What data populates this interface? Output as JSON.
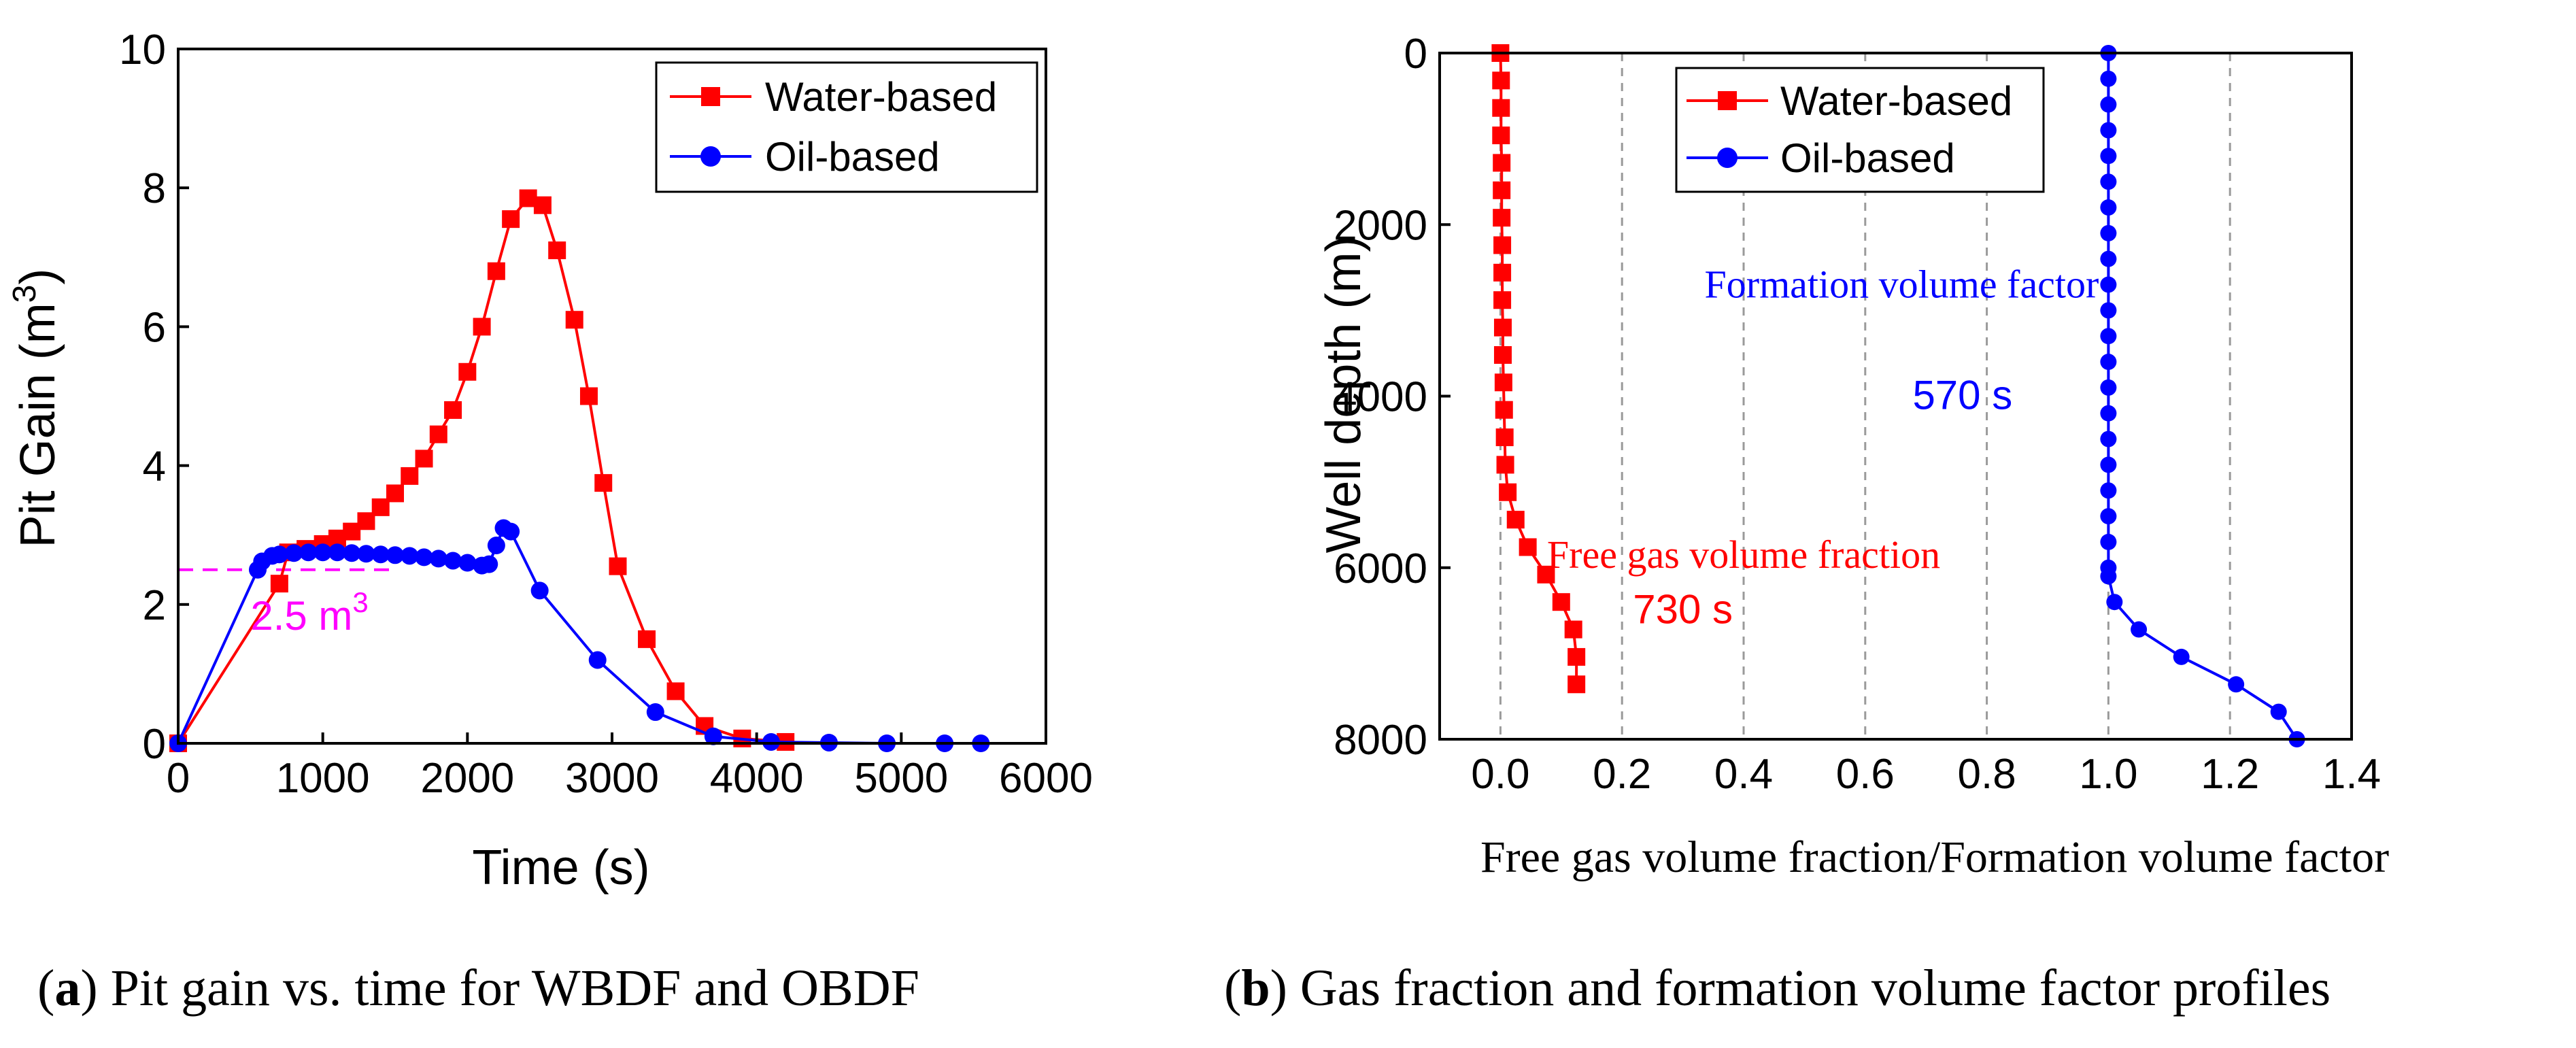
{
  "chart_data": [
    {
      "type": "line",
      "panel_caption_letter": "a",
      "caption": ") Pit gain vs. time for WBDF and OBDF",
      "xlabel": "Time (s)",
      "ylabel": "Pit Gain (m",
      "ylabel_sup": "3",
      "ylabel_end": ")",
      "xlim": [
        0,
        6000
      ],
      "ylim": [
        0,
        10
      ],
      "xticks": [
        "0",
        "1000",
        "2000",
        "3000",
        "4000",
        "5000",
        "6000"
      ],
      "yticks": [
        "0",
        "2",
        "4",
        "6",
        "8",
        "10"
      ],
      "legend": [
        "Water-based",
        "Oil-based"
      ],
      "series": [
        {
          "name": "Water-based",
          "color": "#ff0000",
          "marker": "square",
          "x": [
            0,
            700,
            760,
            880,
            1000,
            1100,
            1200,
            1300,
            1400,
            1500,
            1600,
            1700,
            1800,
            1900,
            2000,
            2100,
            2200,
            2300,
            2420,
            2520,
            2620,
            2740,
            2840,
            2940,
            3040,
            3240,
            3440,
            3640,
            3900,
            4200
          ],
          "y": [
            0,
            2.3,
            2.75,
            2.8,
            2.87,
            2.95,
            3.05,
            3.2,
            3.4,
            3.6,
            3.85,
            4.1,
            4.45,
            4.8,
            5.35,
            6.0,
            6.8,
            7.55,
            7.85,
            7.75,
            7.1,
            6.1,
            5.0,
            3.75,
            2.55,
            1.5,
            0.75,
            0.25,
            0.07,
            0.02
          ]
        },
        {
          "name": "Oil-based",
          "color": "#0000ff",
          "marker": "circle",
          "x": [
            0,
            550,
            580,
            650,
            700,
            800,
            900,
            1000,
            1100,
            1200,
            1300,
            1400,
            1500,
            1600,
            1700,
            1800,
            1900,
            2000,
            2100,
            2150,
            2200,
            2250,
            2300,
            2500,
            2900,
            3300,
            3700,
            4100,
            4500,
            4900,
            5300,
            5550
          ],
          "y": [
            0,
            2.5,
            2.62,
            2.7,
            2.72,
            2.74,
            2.75,
            2.75,
            2.75,
            2.74,
            2.73,
            2.72,
            2.71,
            2.7,
            2.68,
            2.66,
            2.63,
            2.6,
            2.56,
            2.58,
            2.85,
            3.1,
            3.05,
            2.2,
            1.2,
            0.45,
            0.1,
            0.02,
            0.01,
            0.0,
            0.0,
            0.0
          ]
        }
      ],
      "reference_line": {
        "y": 2.5,
        "x_end": 1500,
        "color": "#ff00ff",
        "label": "2.5 m",
        "label_sup": "3"
      }
    },
    {
      "type": "line",
      "panel_caption_letter": "b",
      "caption": ") Gas fraction and formation volume factor profiles",
      "xlabel": "Free gas volume fraction/Formation volume factor",
      "ylabel": "Well depth (m)",
      "xlim": [
        -0.1,
        1.4
      ],
      "ylim": [
        8000,
        0
      ],
      "xticks": [
        "0.0",
        "0.2",
        "0.4",
        "0.6",
        "0.8",
        "1.0",
        "1.2",
        "1.4"
      ],
      "yticks": [
        "0",
        "2000",
        "4000",
        "6000",
        "8000"
      ],
      "grid": "vertical dashed",
      "legend": [
        "Water-based",
        "Oil-based"
      ],
      "series": [
        {
          "name": "Water-based",
          "color": "#ff0000",
          "marker": "square",
          "x": [
            0,
            0.001,
            0.001,
            0.001,
            0.002,
            0.002,
            0.002,
            0.003,
            0.003,
            0.003,
            0.004,
            0.004,
            0.005,
            0.006,
            0.007,
            0.008,
            0.012,
            0.025,
            0.045,
            0.075,
            0.1,
            0.12,
            0.125,
            0.125
          ],
          "depth": [
            0,
            320,
            640,
            960,
            1280,
            1600,
            1920,
            2240,
            2560,
            2880,
            3200,
            3520,
            3840,
            4160,
            4480,
            4800,
            5120,
            5440,
            5760,
            6080,
            6400,
            6720,
            7040,
            7360
          ]
        },
        {
          "name": "Oil-based",
          "color": "#0000ff",
          "marker": "circle",
          "x": [
            1.0,
            1.0,
            1.0,
            1.0,
            1.0,
            1.0,
            1.0,
            1.0,
            1.0,
            1.0,
            1.0,
            1.0,
            1.0,
            1.0,
            1.0,
            1.0,
            1.0,
            1.0,
            1.0,
            1.0,
            1.0,
            1.0,
            1.01,
            1.05,
            1.12,
            1.21,
            1.28,
            1.31
          ],
          "depth": [
            0,
            300,
            600,
            900,
            1200,
            1500,
            1800,
            2100,
            2400,
            2700,
            3000,
            3300,
            3600,
            3900,
            4200,
            4500,
            4800,
            5100,
            5400,
            5700,
            6000,
            6100,
            6400,
            6720,
            7040,
            7360,
            7680,
            8000
          ]
        }
      ],
      "annotations": [
        {
          "text": "Formation volume factor",
          "color": "#0000ff",
          "x": 0.66,
          "depth": 2850,
          "font": "serif"
        },
        {
          "text": "570 s",
          "color": "#0000ff",
          "x": 0.76,
          "depth": 4150,
          "font": "sans"
        },
        {
          "text": "Free gas volume fraction",
          "color": "#ff0000",
          "x": 0.4,
          "depth": 6000,
          "font": "serif"
        },
        {
          "text": "730 s",
          "color": "#ff0000",
          "x": 0.3,
          "depth": 6650,
          "font": "sans"
        }
      ]
    }
  ]
}
